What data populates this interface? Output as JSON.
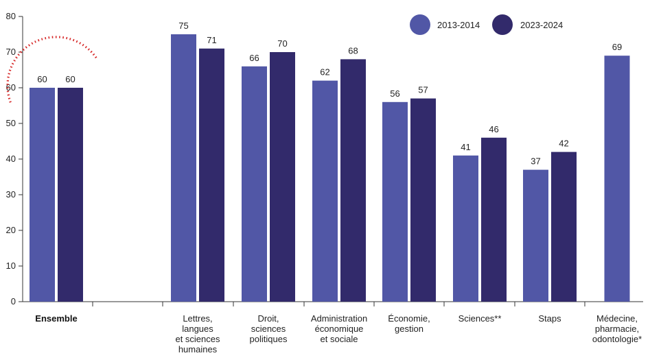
{
  "colors": {
    "series_2013": "#5157a6",
    "series_2023": "#322a6b",
    "axis": "#333333",
    "highlight_circle": "#d62828"
  },
  "legend": {
    "position": "top-right"
  },
  "chart_data": {
    "type": "bar",
    "ylim": [
      0,
      80
    ],
    "yticks": [
      0,
      10,
      20,
      30,
      40,
      50,
      60,
      70,
      80
    ],
    "grid": false,
    "categories": [
      [
        "Ensemble"
      ],
      [
        "Lettres,",
        "langues",
        "et sciences",
        "humaines"
      ],
      [
        "Droit,",
        "sciences",
        "politiques"
      ],
      [
        "Administration",
        "économique",
        "et sociale"
      ],
      [
        "Économie,",
        "gestion"
      ],
      [
        "Sciences**"
      ],
      [
        "Staps"
      ],
      [
        "Médecine,",
        "pharmacie,",
        "odontologie*"
      ]
    ],
    "series": [
      {
        "name": "2013-2014",
        "values": [
          60,
          75,
          66,
          62,
          56,
          41,
          37,
          69
        ]
      },
      {
        "name": "2023-2024",
        "values": [
          60,
          71,
          70,
          68,
          57,
          46,
          42,
          null
        ]
      }
    ],
    "highlighted_category": "Ensemble"
  }
}
